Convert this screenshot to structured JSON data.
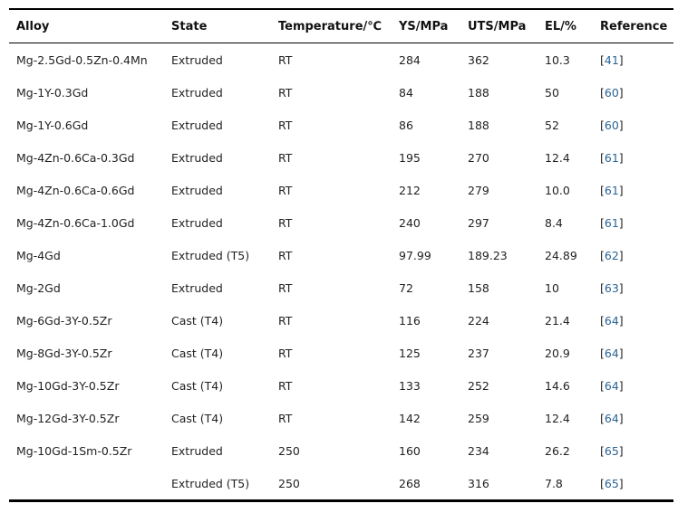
{
  "table": {
    "headers": [
      "Alloy",
      "State",
      "Temperature/℃",
      "YS/MPa",
      "UTS/MPa",
      "EL/%",
      "Reference"
    ],
    "rows": [
      {
        "alloy": "Mg-2.5Gd-0.5Zn-0.4Mn",
        "state": "Extruded",
        "temperature": "RT",
        "ys": "284",
        "uts": "362",
        "el": "10.3",
        "ref": "41"
      },
      {
        "alloy": "Mg-1Y-0.3Gd",
        "state": "Extruded",
        "temperature": "RT",
        "ys": "84",
        "uts": "188",
        "el": "50",
        "ref": "60"
      },
      {
        "alloy": "Mg-1Y-0.6Gd",
        "state": "Extruded",
        "temperature": "RT",
        "ys": "86",
        "uts": "188",
        "el": "52",
        "ref": "60"
      },
      {
        "alloy": "Mg-4Zn-0.6Ca-0.3Gd",
        "state": "Extruded",
        "temperature": "RT",
        "ys": "195",
        "uts": "270",
        "el": "12.4",
        "ref": "61"
      },
      {
        "alloy": "Mg-4Zn-0.6Ca-0.6Gd",
        "state": "Extruded",
        "temperature": "RT",
        "ys": "212",
        "uts": "279",
        "el": "10.0",
        "ref": "61"
      },
      {
        "alloy": "Mg-4Zn-0.6Ca-1.0Gd",
        "state": "Extruded",
        "temperature": "RT",
        "ys": "240",
        "uts": "297",
        "el": "8.4",
        "ref": "61"
      },
      {
        "alloy": "Mg-4Gd",
        "state": "Extruded (T5)",
        "temperature": "RT",
        "ys": "97.99",
        "uts": "189.23",
        "el": "24.89",
        "ref": "62"
      },
      {
        "alloy": "Mg-2Gd",
        "state": "Extruded",
        "temperature": "RT",
        "ys": "72",
        "uts": "158",
        "el": "10",
        "ref": "63"
      },
      {
        "alloy": "Mg-6Gd-3Y-0.5Zr",
        "state": "Cast (T4)",
        "temperature": "RT",
        "ys": "116",
        "uts": "224",
        "el": "21.4",
        "ref": "64"
      },
      {
        "alloy": "Mg-8Gd-3Y-0.5Zr",
        "state": "Cast (T4)",
        "temperature": "RT",
        "ys": "125",
        "uts": "237",
        "el": "20.9",
        "ref": "64"
      },
      {
        "alloy": "Mg-10Gd-3Y-0.5Zr",
        "state": "Cast (T4)",
        "temperature": "RT",
        "ys": "133",
        "uts": "252",
        "el": "14.6",
        "ref": "64"
      },
      {
        "alloy": "Mg-12Gd-3Y-0.5Zr",
        "state": "Cast (T4)",
        "temperature": "RT",
        "ys": "142",
        "uts": "259",
        "el": "12.4",
        "ref": "64"
      },
      {
        "alloy": "Mg-10Gd-1Sm-0.5Zr",
        "state": "Extruded",
        "temperature": "250",
        "ys": "160",
        "uts": "234",
        "el": "26.2",
        "ref": "65"
      },
      {
        "alloy": "",
        "state": "Extruded (T5)",
        "temperature": "250",
        "ys": "268",
        "uts": "316",
        "el": "7.8",
        "ref": "65"
      }
    ]
  },
  "colors": {
    "text": "#222222",
    "link": "#2a6496",
    "rule": "#000000"
  }
}
